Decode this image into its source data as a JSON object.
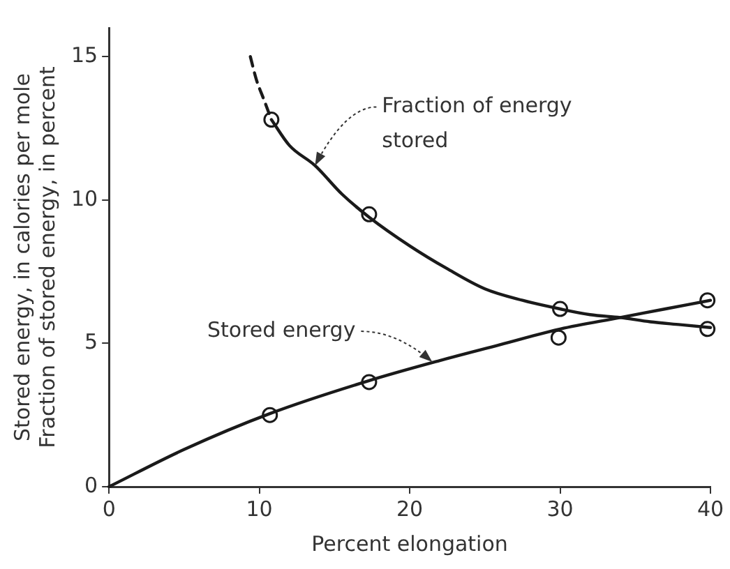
{
  "chart_data": {
    "type": "line",
    "xlabel": "Percent elongation",
    "ylabel": "Stored energy, in calories per mole\nFraction of stored energy, in percent",
    "xlim": [
      0,
      40
    ],
    "ylim": [
      0,
      16
    ],
    "xticks": [
      0,
      10,
      20,
      30,
      40
    ],
    "yticks": [
      0,
      5,
      10,
      15
    ],
    "grid": false,
    "legend": false,
    "series": [
      {
        "type": "line",
        "color": "#1a1a1a",
        "marker": "none",
        "line_style": "dashed",
        "x": [
          9.4,
          9.8,
          10.3,
          10.8
        ],
        "values": [
          15,
          14.2,
          13.5,
          12.8
        ]
      },
      {
        "type": "line",
        "color": "#1a1a1a",
        "marker": "none",
        "line_style": "solid",
        "x": [
          10.8,
          12,
          13.7,
          15.5,
          17.3,
          20,
          22.5,
          25,
          27.5,
          30,
          32,
          34,
          36,
          38,
          40
        ],
        "values": [
          12.8,
          11.9,
          11.2,
          10.2,
          9.4,
          8.4,
          7.6,
          6.9,
          6.5,
          6.2,
          6.0,
          5.9,
          5.75,
          5.65,
          5.55
        ]
      },
      {
        "type": "scatter",
        "color": "#1a1a1a",
        "marker": "circle",
        "x": [
          10.8,
          17.3,
          30,
          39.8
        ],
        "values": [
          12.8,
          9.5,
          6.2,
          5.5
        ]
      },
      {
        "type": "line",
        "color": "#1a1a1a",
        "marker": "none",
        "line_style": "solid",
        "x": [
          0,
          5,
          10.7,
          17.3,
          22,
          26,
          30,
          34,
          37,
          40
        ],
        "values": [
          0,
          1.3,
          2.55,
          3.7,
          4.4,
          4.95,
          5.5,
          5.9,
          6.2,
          6.5
        ]
      },
      {
        "type": "scatter",
        "color": "#1a1a1a",
        "marker": "circle",
        "x": [
          10.7,
          17.3,
          29.9,
          39.8
        ],
        "values": [
          2.5,
          3.65,
          5.2,
          6.5
        ]
      }
    ],
    "annotations": [
      {
        "text": "Fraction of energy\nstored",
        "x": 13.7,
        "y": 11.2
      },
      {
        "text": "Stored energy",
        "x": 21.5,
        "y": 4.35
      }
    ]
  }
}
